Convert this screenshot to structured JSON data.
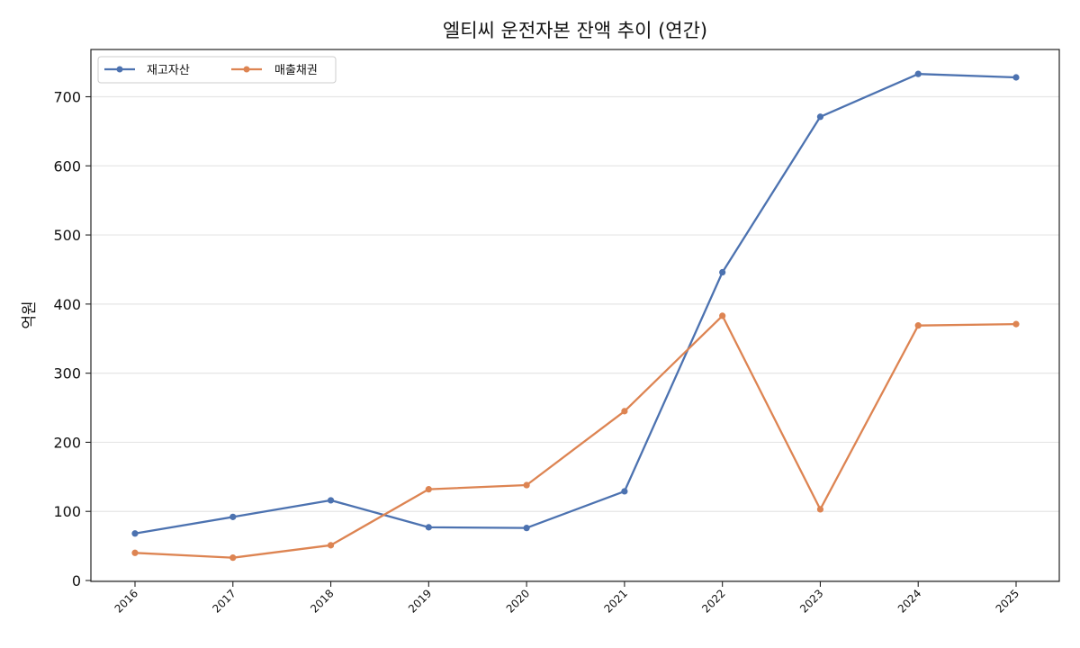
{
  "chart_data": {
    "type": "line",
    "title": "엘티씨 운전자본 잔액 추이 (연간)",
    "xlabel": "",
    "ylabel": "억원",
    "categories": [
      "2016",
      "2017",
      "2018",
      "2019",
      "2020",
      "2021",
      "2022",
      "2023",
      "2024",
      "2025"
    ],
    "ylim": [
      0,
      760
    ],
    "yticks": [
      0,
      100,
      200,
      300,
      400,
      500,
      600,
      700
    ],
    "grid": "horizontal",
    "legend_position": "top-left",
    "series": [
      {
        "name": "재고자산",
        "color": "#4c72b0",
        "values": [
          68,
          92,
          116,
          77,
          76,
          129,
          446,
          671,
          733,
          728
        ]
      },
      {
        "name": "매출채권",
        "color": "#dd8452",
        "values": [
          40,
          33,
          51,
          132,
          138,
          245,
          383,
          103,
          369,
          371
        ]
      }
    ]
  }
}
